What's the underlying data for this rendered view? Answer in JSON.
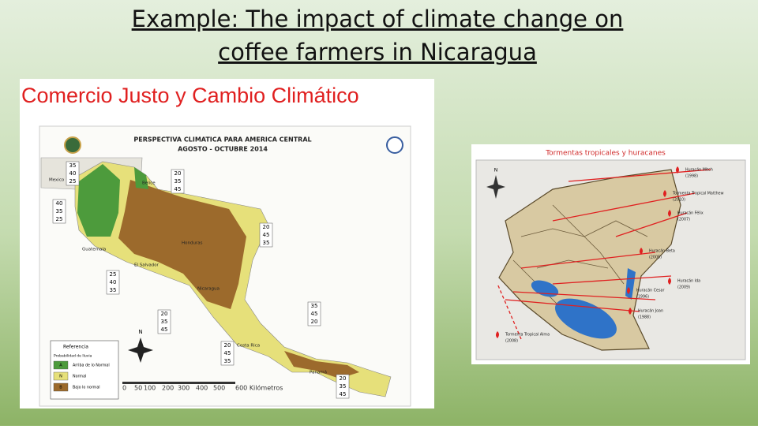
{
  "title": [
    "Example: The impact of climate change on",
    "coffee farmers in Nicaragua"
  ],
  "left_map": {
    "heading": "Comercio Justo y Cambio Climático",
    "subheading": [
      "PERSPECTIVA CLIMATICA PARA AMERICA CENTRAL",
      "AGOSTO - OCTUBRE 2014"
    ],
    "boxes": [
      [
        "35",
        "40",
        "25"
      ],
      [
        "20",
        "35",
        "45"
      ],
      [
        "40",
        "35",
        "25"
      ],
      [
        "20",
        "45",
        "35"
      ],
      [
        "25",
        "40",
        "35"
      ],
      [
        "35",
        "45",
        "20"
      ],
      [
        "20",
        "35",
        "45"
      ],
      [
        "20",
        "45",
        "35"
      ],
      [
        "20",
        "35",
        "45"
      ]
    ],
    "places": [
      "Mexico",
      "Belice",
      "Guatemala",
      "Honduras",
      "El Salvador",
      "Nicaragua",
      "Costa Rica",
      "Panamá"
    ],
    "legend": {
      "title": "Referencia",
      "subtitle": "Probabilidad de lluvia",
      "items": [
        {
          "code": "A",
          "label": "Arriba de lo Normal"
        },
        {
          "code": "N",
          "label": "Normal"
        },
        {
          "code": "B",
          "label": "Bajo lo normal"
        }
      ]
    },
    "scale": [
      "0",
      "50",
      "100",
      "200",
      "300",
      "400",
      "500",
      "600 Kilómetros"
    ],
    "north": "N"
  },
  "right_map": {
    "heading": "Tormentas tropicales y huracanes",
    "north": "N",
    "storms": [
      [
        "Huracán Mitch",
        "(1998)"
      ],
      [
        "Tormenta Tropical Matthew",
        "(2010)"
      ],
      [
        "Huracán Félix",
        "(2007)"
      ],
      [
        "Huracán Beta",
        "(2005)"
      ],
      [
        "Huracán Ida",
        "(2009)"
      ],
      [
        "Huracán Cesar",
        "(1996)"
      ],
      [
        "Huracán Joan",
        "(1988)"
      ],
      [
        "Tormenta Tropical Alma",
        "(2008)"
      ]
    ]
  }
}
